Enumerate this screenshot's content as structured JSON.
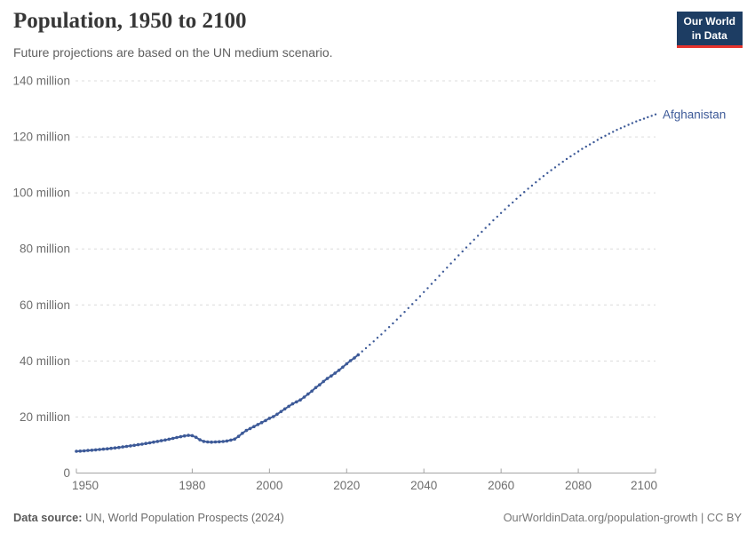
{
  "header": {
    "title": "Population, 1950 to 2100",
    "subtitle": "Future projections are based on the UN medium scenario.",
    "logo": {
      "line1": "Our World",
      "line2": "in Data",
      "bg_color": "#1d3d63",
      "accent_color": "#e6332d"
    }
  },
  "chart_data": {
    "type": "line",
    "title": "Population, 1950 to 2100",
    "entity_label": "Afghanistan",
    "line_color": "#3d5a98",
    "grid": true,
    "grid_color": "#dcdcdc",
    "axis_color": "#a3a3a3",
    "unit": "million",
    "xlim": [
      1950,
      2100
    ],
    "ylim": [
      0,
      140
    ],
    "x_ticks": [
      1950,
      1980,
      2000,
      2020,
      2040,
      2060,
      2080,
      2100
    ],
    "y_ticks": [
      {
        "value": 0,
        "label": "0"
      },
      {
        "value": 20,
        "label": "20 million"
      },
      {
        "value": 40,
        "label": "40 million"
      },
      {
        "value": 60,
        "label": "60 million"
      },
      {
        "value": 80,
        "label": "80 million"
      },
      {
        "value": 100,
        "label": "100 million"
      },
      {
        "value": 120,
        "label": "120 million"
      },
      {
        "value": 140,
        "label": "140 million"
      }
    ],
    "series": [
      {
        "name": "Afghanistan (UN estimates)",
        "style": "solid",
        "start_year": 1950,
        "values": [
          7.78,
          7.84,
          7.94,
          8.04,
          8.15,
          8.27,
          8.4,
          8.53,
          8.67,
          8.82,
          8.98,
          9.14,
          9.32,
          9.5,
          9.69,
          9.89,
          10.1,
          10.32,
          10.55,
          10.79,
          11.03,
          11.28,
          11.54,
          11.81,
          12.09,
          12.38,
          12.67,
          12.96,
          13.25,
          13.45,
          13.36,
          12.75,
          11.85,
          11.3,
          11.1,
          11.05,
          11.1,
          11.15,
          11.25,
          11.45,
          11.75,
          12.1,
          13.1,
          14.2,
          15.2,
          15.9,
          16.6,
          17.3,
          18.0,
          18.75,
          19.54,
          20.15,
          21.0,
          21.95,
          22.9,
          23.8,
          24.7,
          25.4,
          26.1,
          27.1,
          28.2,
          29.25,
          30.5,
          31.5,
          32.7,
          33.75,
          34.65,
          35.65,
          36.7,
          37.8,
          39.0,
          40.1,
          41.1,
          42.2
        ]
      },
      {
        "name": "Afghanistan (UN medium projection)",
        "style": "dotted",
        "start_year": 2024,
        "values": [
          43.4,
          44.6,
          45.8,
          47.0,
          48.3,
          49.5,
          50.8,
          52.1,
          53.4,
          54.8,
          56.1,
          57.5,
          58.9,
          60.3,
          61.7,
          63.1,
          64.6,
          66.0,
          67.5,
          68.9,
          70.4,
          71.9,
          73.3,
          74.8,
          76.2,
          77.7,
          79.1,
          80.5,
          81.9,
          83.3,
          84.7,
          86.1,
          87.5,
          88.8,
          90.2,
          91.5,
          92.8,
          94.1,
          95.4,
          96.6,
          97.9,
          99.1,
          100.3,
          101.5,
          102.6,
          103.8,
          104.9,
          106.0,
          107.1,
          108.1,
          109.1,
          110.1,
          111.1,
          112.1,
          113.0,
          113.9,
          114.8,
          115.7,
          116.5,
          117.3,
          118.1,
          118.9,
          119.7,
          120.4,
          121.1,
          121.8,
          122.5,
          123.1,
          123.7,
          124.3,
          124.9,
          125.5,
          126.0,
          126.5,
          127.0,
          127.5,
          128.0
        ]
      }
    ]
  },
  "footer": {
    "source_label": "Data source:",
    "source_text": " UN, World Population Prospects (2024)",
    "credit": "OurWorldinData.org/population-growth | CC BY"
  }
}
